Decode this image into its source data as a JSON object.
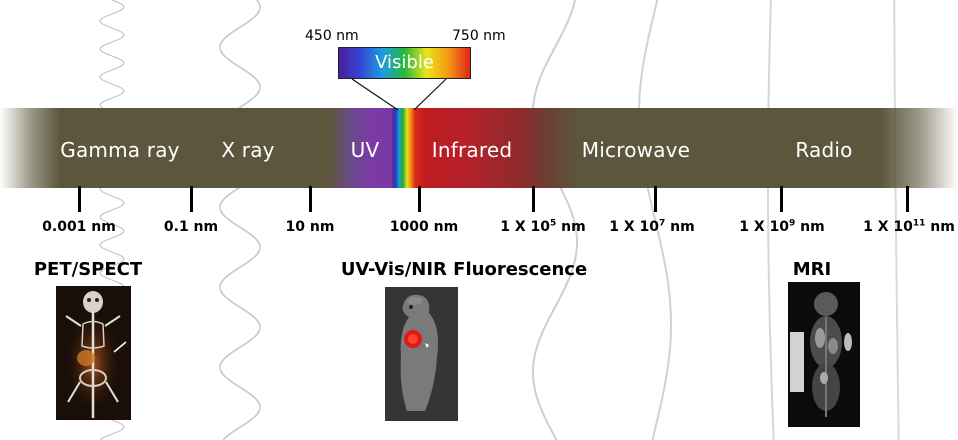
{
  "regions": [
    {
      "id": "gamma",
      "label": "Gamma ray"
    },
    {
      "id": "xray",
      "label": "X ray"
    },
    {
      "id": "uv",
      "label": "UV"
    },
    {
      "id": "infrared",
      "label": "Infrared"
    },
    {
      "id": "microwave",
      "label": "Microwave"
    },
    {
      "id": "radio",
      "label": "Radio"
    }
  ],
  "ticks": [
    {
      "base": "0.001 nm",
      "exp": "",
      "unit": ""
    },
    {
      "base": "0.1 nm",
      "exp": "",
      "unit": ""
    },
    {
      "base": "10 nm",
      "exp": "",
      "unit": ""
    },
    {
      "base": "1000 nm",
      "exp": "",
      "unit": ""
    },
    {
      "base": "1 X 10",
      "exp": "5",
      "unit": " nm"
    },
    {
      "base": "1 X 10",
      "exp": "7",
      "unit": " nm"
    },
    {
      "base": "1 X 10",
      "exp": "9",
      "unit": " nm"
    },
    {
      "base": "1 X 10",
      "exp": "11",
      "unit": " nm"
    }
  ],
  "visible": {
    "label": "Visible",
    "start": "450 nm",
    "end": "750 nm"
  },
  "modalities": [
    {
      "id": "pet",
      "label": "PET/SPECT"
    },
    {
      "id": "fluor",
      "label": "UV-Vis/NIR Fluorescence"
    },
    {
      "id": "mri",
      "label": "MRI"
    }
  ],
  "colors": {
    "band": "#5c563c",
    "uv": "#7a3aa6",
    "infrared": "#b3222a",
    "tick": "#000000"
  }
}
